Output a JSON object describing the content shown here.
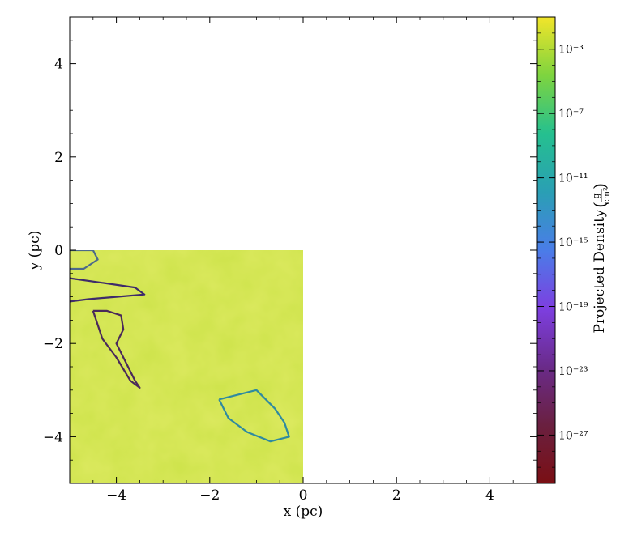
{
  "chart_data": {
    "type": "heatmap",
    "title": "",
    "xlabel": "x  (pc)",
    "ylabel": "y  (pc)",
    "xlim": [
      -5,
      5
    ],
    "ylim": [
      -5,
      5
    ],
    "x_ticks": [
      -4,
      -2,
      0,
      2,
      4
    ],
    "y_ticks": [
      -4,
      -2,
      0,
      2,
      4
    ],
    "x_tick_labels": [
      "−4",
      "−2",
      "0",
      "2",
      "4"
    ],
    "y_tick_labels": [
      "−4",
      "−2",
      "0",
      "2",
      "4"
    ],
    "data_extent": {
      "x": [
        -5,
        0
      ],
      "y": [
        -5,
        0
      ]
    },
    "colorbar": {
      "label": "Projected Density",
      "units_numerator": "g",
      "units_denominator": "cm²",
      "scale": "log",
      "range_exponent": [
        -30,
        -1
      ],
      "tick_exponents": [
        -3,
        -7,
        -11,
        -15,
        -19,
        -23,
        -27
      ],
      "tick_labels": [
        "10⁻³",
        "10⁻⁷",
        "10⁻¹¹",
        "10⁻¹⁵",
        "10⁻¹⁹",
        "10⁻²³",
        "10⁻²⁷"
      ],
      "colormap": "viridis-like, dark red at minimum to yellow at maximum",
      "colors": [
        "#7a0f14",
        "#6a2040",
        "#6a2b8a",
        "#7d3fe0",
        "#4a7de8",
        "#2a9fb4",
        "#25c08f",
        "#7ed43f",
        "#f2e52a"
      ]
    },
    "field_color": "#cde34a",
    "field_value_exponent": -2,
    "contours": [
      {
        "name": "",
        "color": "#3e2a6b",
        "level_exponent": -20,
        "x": [
          -5.0,
          -4.3,
          -3.6,
          -3.4,
          -4.0,
          -4.6,
          -5.0
        ],
        "y": [
          -0.6,
          -0.7,
          -0.8,
          -0.95,
          -1.0,
          -1.05,
          -1.1
        ]
      },
      {
        "name": "",
        "color": "#4a2a5a",
        "level_exponent": -24,
        "x": [
          -4.5,
          -4.2,
          -3.9,
          -3.85,
          -4.0,
          -3.8,
          -3.6,
          -3.5,
          -3.7,
          -4.0,
          -4.3,
          -4.5
        ],
        "y": [
          -1.3,
          -1.3,
          -1.4,
          -1.7,
          -2.0,
          -2.4,
          -2.8,
          -2.95,
          -2.8,
          -2.3,
          -1.9,
          -1.3
        ]
      },
      {
        "name": "",
        "color": "#2f8aa0",
        "level_exponent": -13,
        "x": [
          -1.8,
          -1.4,
          -1.0,
          -0.6,
          -0.4,
          -0.3,
          -0.7,
          -1.2,
          -1.6,
          -1.8
        ],
        "y": [
          -3.2,
          -3.1,
          -3.0,
          -3.4,
          -3.7,
          -4.0,
          -4.1,
          -3.9,
          -3.6,
          -3.2
        ]
      },
      {
        "name": "",
        "color": "#4d6a8a",
        "level_exponent": -16,
        "x": [
          -5.0,
          -4.5,
          -4.4,
          -4.7,
          -5.0
        ],
        "y": [
          0.0,
          0.0,
          -0.2,
          -0.4,
          -0.4
        ]
      }
    ]
  }
}
